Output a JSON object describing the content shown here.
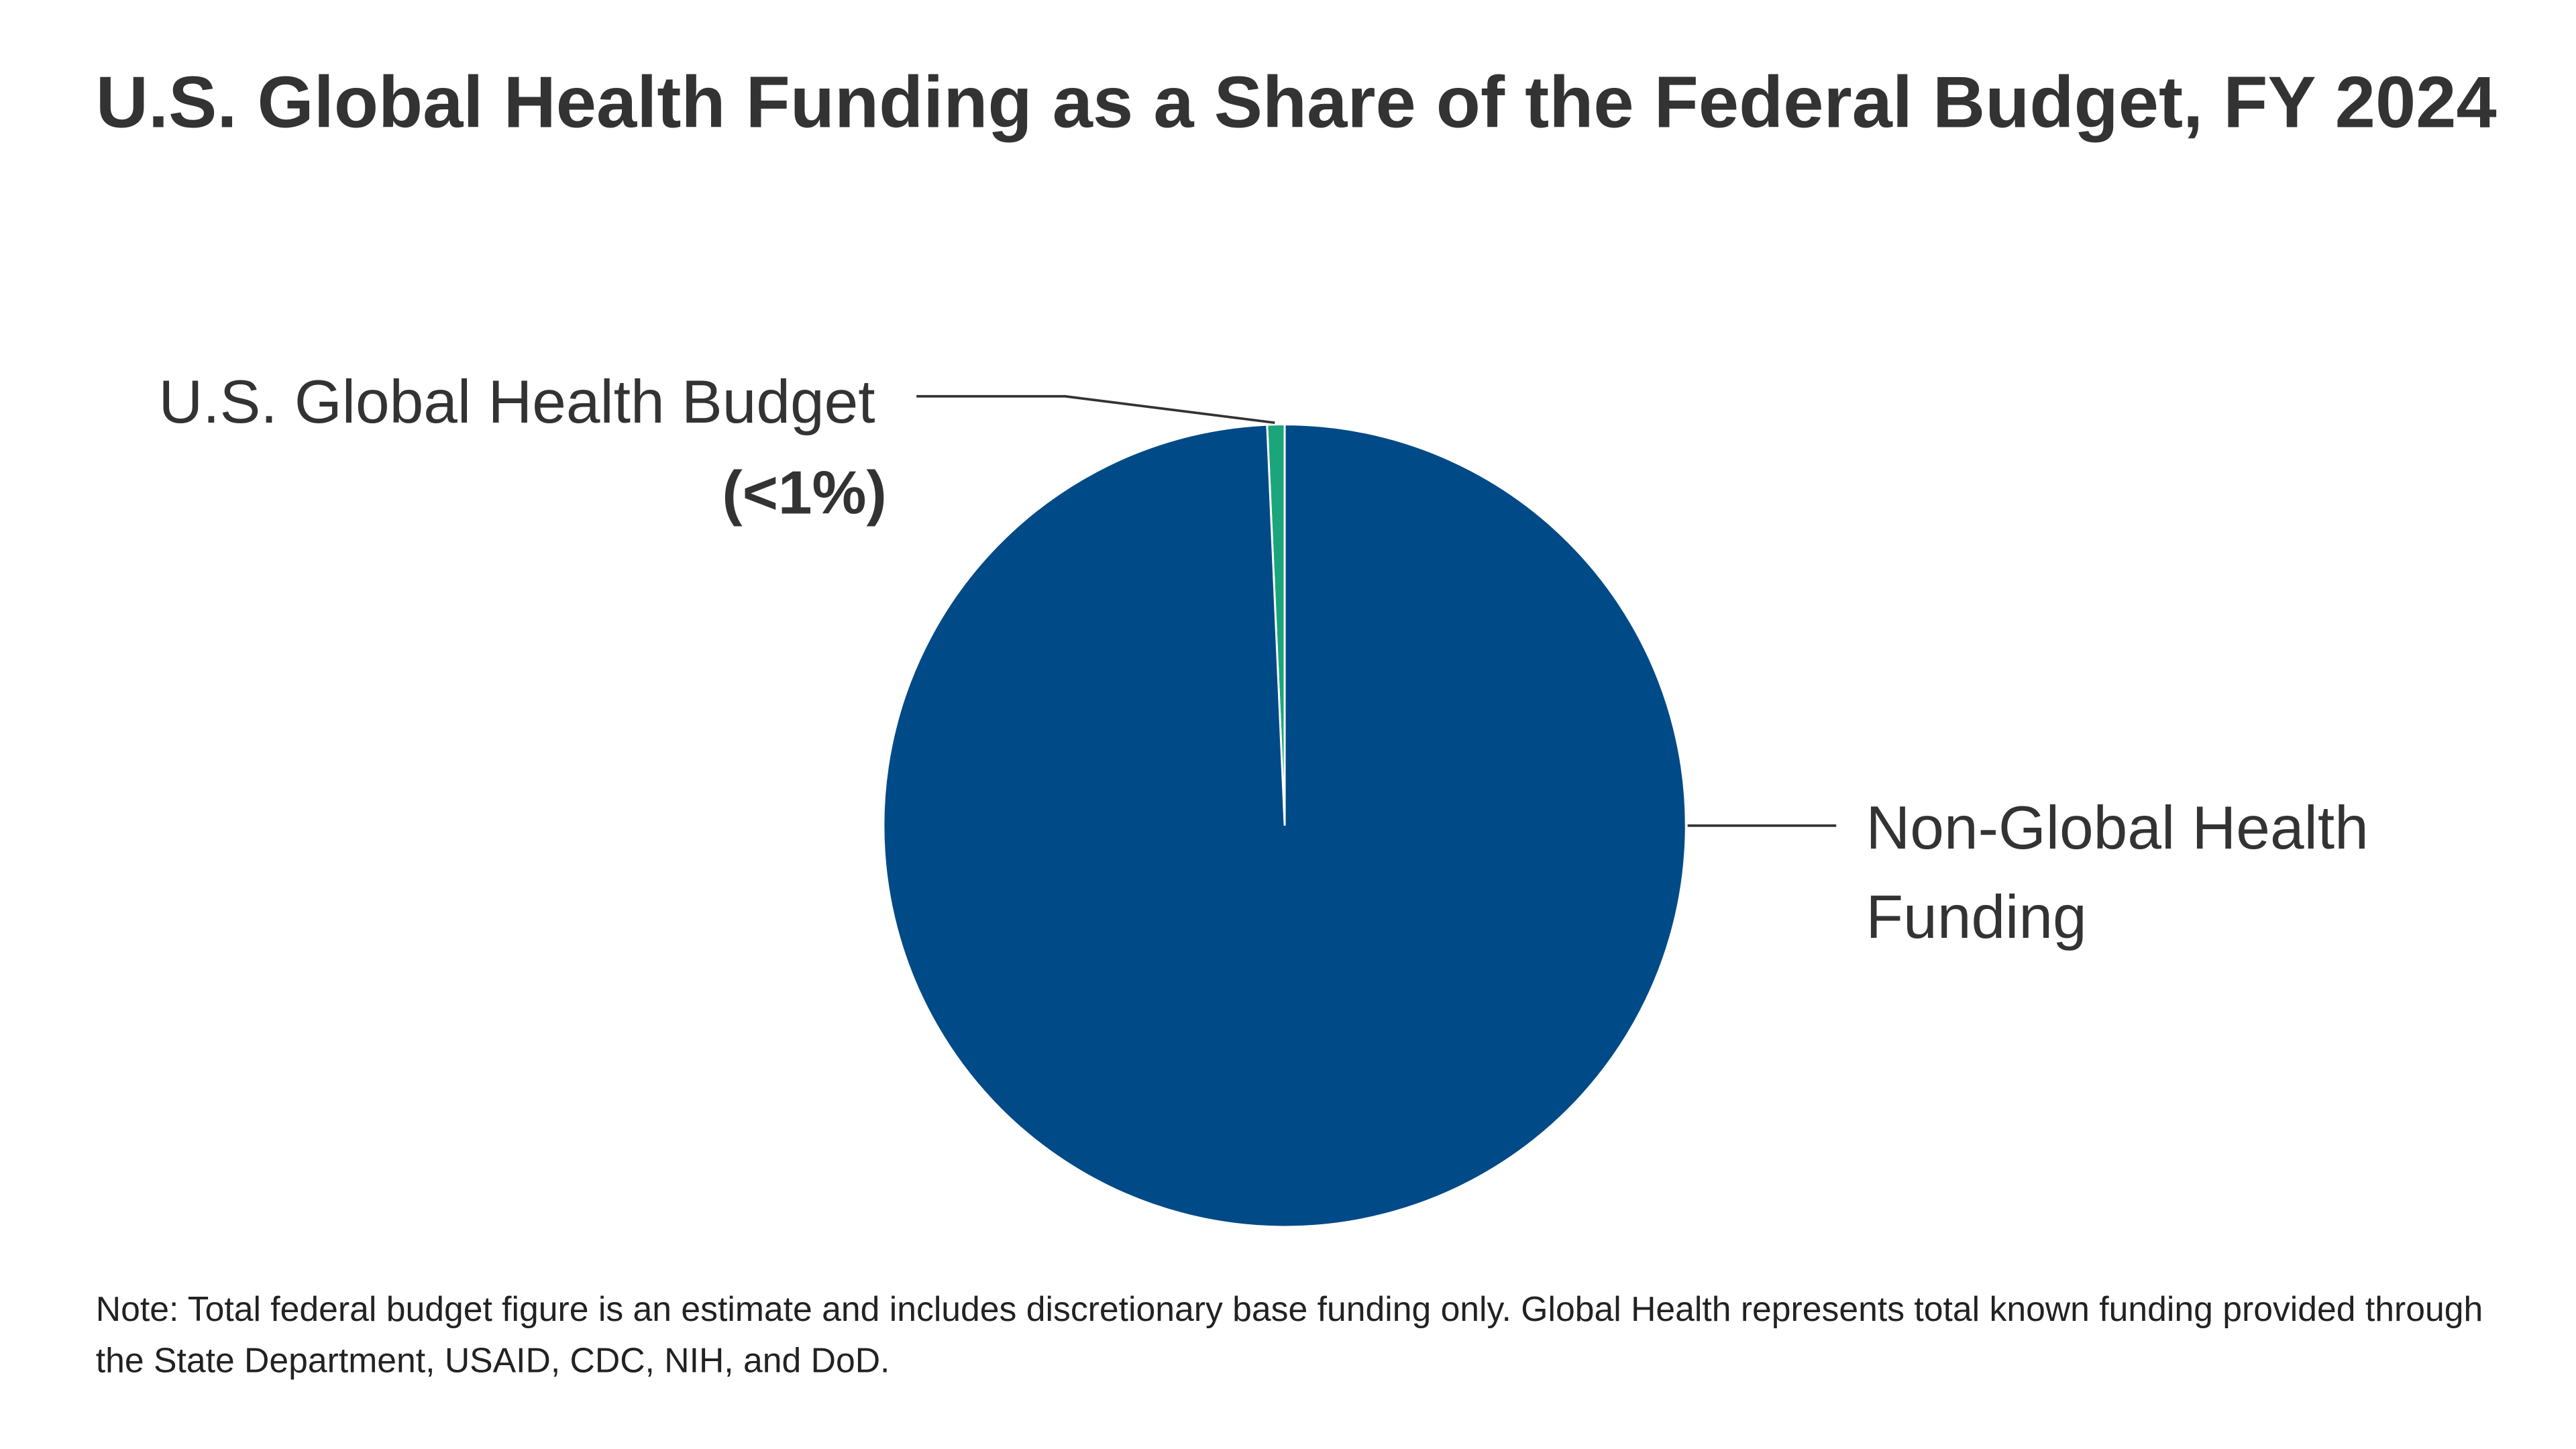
{
  "chart_data": {
    "type": "pie",
    "title": "U.S. Global Health Funding as a Share of the Federal Budget, FY 2024",
    "categories": [
      "U.S. Global Health Budget",
      "Non-Global Health Funding"
    ],
    "values": [
      0.7,
      99.3
    ],
    "value_labels": [
      "(<1%)",
      null
    ],
    "colors": [
      "#1aa67a",
      "#004a87"
    ],
    "note": "Note: Total federal budget figure is an estimate and includes discretionary base funding only. Global Health represents total known funding provided through the State Department, USAID, CDC, NIH, and DoD."
  }
}
